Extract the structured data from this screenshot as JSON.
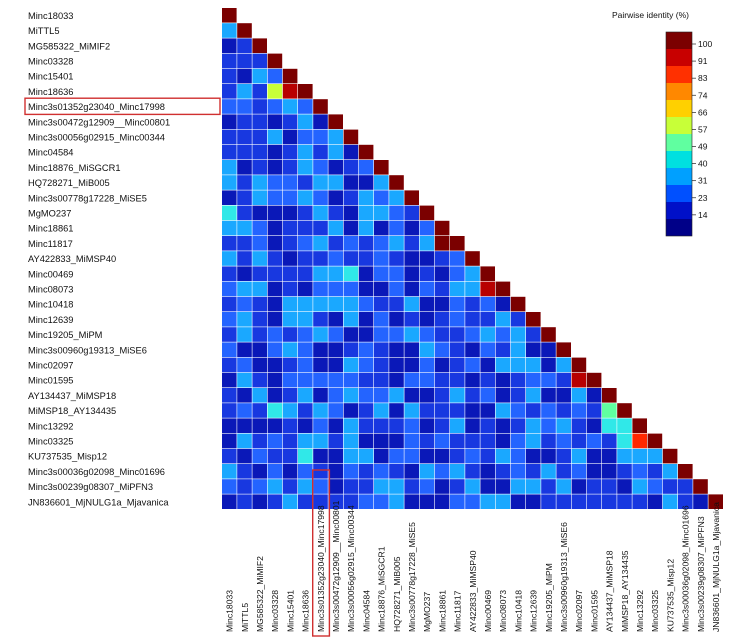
{
  "chart_data": {
    "type": "heatmap",
    "layout": "lower-triangle",
    "labels": [
      "Minc18033",
      "MiTTL5",
      "MG585322_MiMIF2",
      "Minc03328",
      "Minc15401",
      "Minc18636",
      "Minc3s01352g23040_Minc17998",
      "Minc3s00472g12909__Minc00801",
      "Minc3s00056g02915_Minc00344",
      "Minc04584",
      "Minc18876_MiSGCR1",
      "HQ728271_MiB005",
      "Minc3s00778g17228_MiSE5",
      "MgMO237",
      "Minc18861",
      "Minc11817",
      "AY422833_MiMSP40",
      "Minc00469",
      "Minc08073",
      "Minc10418",
      "Minc12639",
      "Minc19205_MiPM",
      "Minc3s00960g19313_MiSE6",
      "Minc02097",
      "Minc01595",
      "AY134437_MiMSP18",
      "MiMSP18_AY134435",
      "Minc13292",
      "Minc03325",
      "KU737535_Misp12",
      "Minc3s00036g02098_Minc01696",
      "Minc3s00239g08307_MiPFN3",
      "JN836601_MjNULG1a_Mjavanica"
    ],
    "highlighted_label": "Minc3s01352g23040_Minc17998",
    "diagonal_value": 100,
    "notable_cells": [
      {
        "row": "Minc18636",
        "col": "Minc15401",
        "value": 91
      },
      {
        "row": "Minc18636",
        "col": "Minc03328",
        "value": 57
      },
      {
        "row": "MiMSP18_AY134435",
        "col": "AY134437_MiMSP18",
        "value": 49
      },
      {
        "row": "Minc13292",
        "col": "AY134437_MiMSP18",
        "value": 40
      },
      {
        "row": "Minc13292",
        "col": "MiMSP18_AY134435",
        "value": 40
      },
      {
        "row": "Minc03325",
        "col": "Minc13292",
        "value": 83
      },
      {
        "row": "Minc03325",
        "col": "MiMSP18_AY134435",
        "value": 40
      },
      {
        "row": "Minc01595",
        "col": "Minc02097",
        "value": 91
      },
      {
        "row": "Minc08073",
        "col": "Minc00469",
        "value": 91
      },
      {
        "row": "Minc11817",
        "col": "Minc18861",
        "value": 100
      }
    ],
    "off_diagonal_range": [
      10,
      40
    ],
    "legend": {
      "title": "Pairwise identity (%)",
      "ticks": [
        "100",
        "91",
        "83",
        "74",
        "66",
        "57",
        "49",
        "40",
        "31",
        "23",
        "14"
      ],
      "position": "top-right"
    }
  }
}
